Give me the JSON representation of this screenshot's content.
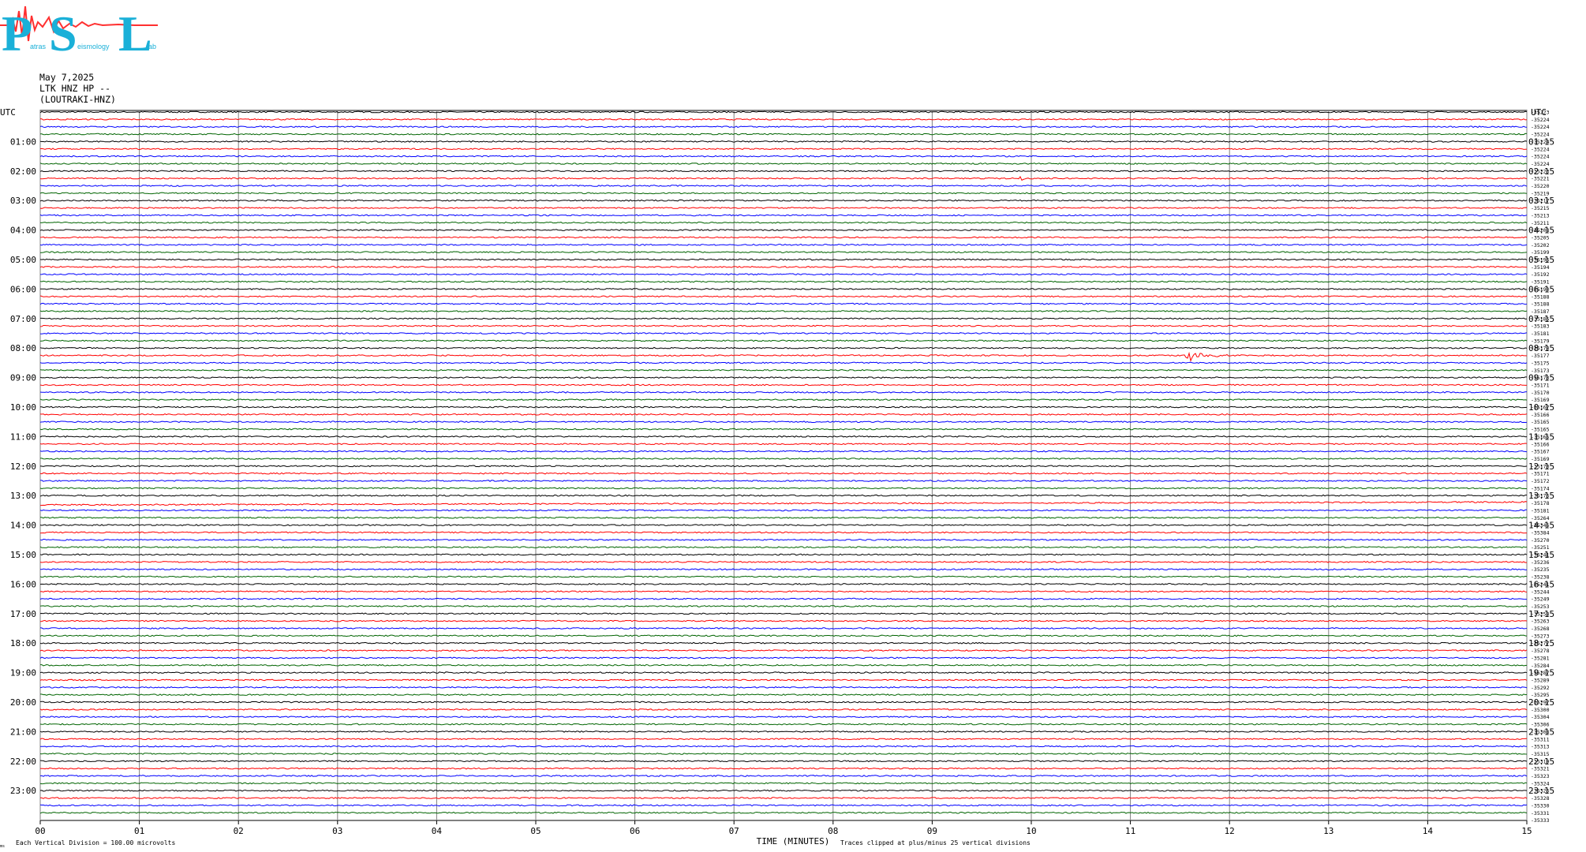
{
  "header": {
    "date": "May 7,2025",
    "station": "LTK HNZ HP --",
    "channel": "(LOUTRAKI-HNZ)"
  },
  "logo": {
    "letters": [
      "P",
      "S",
      "L"
    ],
    "words": [
      "atras",
      "eismology",
      "ab"
    ],
    "name": "Patras Seismology Lab"
  },
  "footer": {
    "division_note": "Each Vertical Division =  100.00 microvolts",
    "xlabel": "TIME (MINUTES)",
    "clip_note": "Traces clipped at plus/minus 25 vertical divisions",
    "corner_mark": "ms"
  },
  "colors": {
    "trace_cycle": [
      "#000000",
      "#ff0000",
      "#0000ff",
      "#006400"
    ],
    "grid": "#808080",
    "logo_letters": "#1ab0d8",
    "logo_wave": "#ff3030"
  },
  "chart_data": {
    "type": "line",
    "title": "May 7,2025 LTK HNZ HP -- (LOUTRAKI-HNZ)",
    "xlabel": "TIME (MINUTES)",
    "ylabel": "UTC",
    "x_ticks": [
      "00",
      "01",
      "02",
      "03",
      "04",
      "05",
      "06",
      "07",
      "08",
      "09",
      "10",
      "11",
      "12",
      "13",
      "14",
      "15"
    ],
    "xlim": [
      0,
      15
    ],
    "left_axis_title": "UTC",
    "right_axis_title": "UTC",
    "left_hour_labels": [
      "01:00",
      "02:00",
      "03:00",
      "04:00",
      "05:00",
      "06:00",
      "07:00",
      "08:00",
      "09:00",
      "10:00",
      "11:00",
      "12:00",
      "13:00",
      "14:00",
      "15:00",
      "16:00",
      "17:00",
      "18:00",
      "19:00",
      "20:00",
      "21:00",
      "22:00",
      "23:00"
    ],
    "right_hour_labels": [
      "01:15",
      "02:15",
      "03:15",
      "04:15",
      "05:15",
      "06:15",
      "07:15",
      "08:15",
      "09:15",
      "10:15",
      "11:15",
      "12:15",
      "13:15",
      "14:15",
      "15:15",
      "16:15",
      "17:15",
      "18:15",
      "19:15",
      "20:15",
      "21:15",
      "22:15",
      "23:15"
    ],
    "trace_count": 96,
    "trace_minutes": 15,
    "trace_offsets": [
      "-35223",
      "-35224",
      "-35224",
      "-35224",
      "-35224",
      "-35224",
      "-35224",
      "-35224",
      "-35223",
      "-35221",
      "-35220",
      "-35219",
      "-35217",
      "-35215",
      "-35213",
      "-35211",
      "-35208",
      "-35205",
      "-35202",
      "-35199",
      "-35196",
      "-35194",
      "-35192",
      "-35191",
      "-35190",
      "-35188",
      "-35188",
      "-35187",
      "-35185",
      "-35183",
      "-35181",
      "-35179",
      "-35178",
      "-35177",
      "-35175",
      "-35173",
      "-35173",
      "-35171",
      "-35170",
      "-35169",
      "-35167",
      "-35166",
      "-35165",
      "-35165",
      "-35165",
      "-35166",
      "-35167",
      "-35169",
      "-35170",
      "-35171",
      "-35172",
      "-35174",
      "-35176",
      "-35178",
      "-35181",
      "-35264",
      "-35346",
      "-35384",
      "-35270",
      "-35251",
      "-35241",
      "-35236",
      "-35235",
      "-35238",
      "-35241",
      "-35244",
      "-35249",
      "-35253",
      "-35258",
      "-35263",
      "-35268",
      "-35273",
      "-35277",
      "-35278",
      "-35281",
      "-35284",
      "-35287",
      "-35289",
      "-35292",
      "-35295",
      "-35297",
      "-35300",
      "-35304",
      "-35306",
      "-35308",
      "-35311",
      "-35313",
      "-35315",
      "-35319",
      "-35321",
      "-35323",
      "-35324",
      "-35326",
      "-35328",
      "-35330",
      "-35331"
    ],
    "extra_offset_label": "-35333",
    "events": [
      {
        "trace": 9,
        "start_min": 9.88,
        "duration_min": 0.15,
        "amplitude_div": 2.2
      },
      {
        "trace": 9,
        "start_min": 11.97,
        "duration_min": 0.12,
        "amplitude_div": 0.6
      },
      {
        "trace": 33,
        "start_min": 11.55,
        "duration_min": 0.5,
        "amplitude_div": 6.5
      }
    ],
    "drifts": [
      {
        "trace": 53,
        "from_min": 0,
        "to_min": 15,
        "from_div": -1.2,
        "to_div": 0.6
      }
    ],
    "grid": true
  }
}
